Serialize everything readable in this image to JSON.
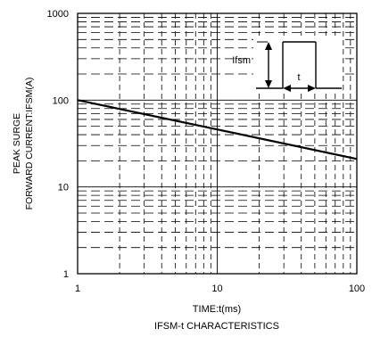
{
  "chart_data": {
    "type": "line",
    "title": "IFSM-t CHARACTERISTICS",
    "xlabel": "TIME:t(ms)",
    "ylabel_lines": [
      "PEAK SURGE",
      "FORWARD CURRENT:IFSM(A)"
    ],
    "x_scale": "log",
    "y_scale": "log",
    "xlim": [
      1,
      100
    ],
    "ylim": [
      1,
      1000
    ],
    "x_ticks": [
      "1",
      "10",
      "100"
    ],
    "y_ticks": [
      "1",
      "10",
      "100",
      "1000"
    ],
    "grid": true,
    "series": [
      {
        "x": [
          1,
          10,
          100
        ],
        "y": [
          100,
          46,
          21
        ]
      }
    ],
    "inset": {
      "ifsm_label": "Ifsm",
      "t_label": "t"
    }
  }
}
